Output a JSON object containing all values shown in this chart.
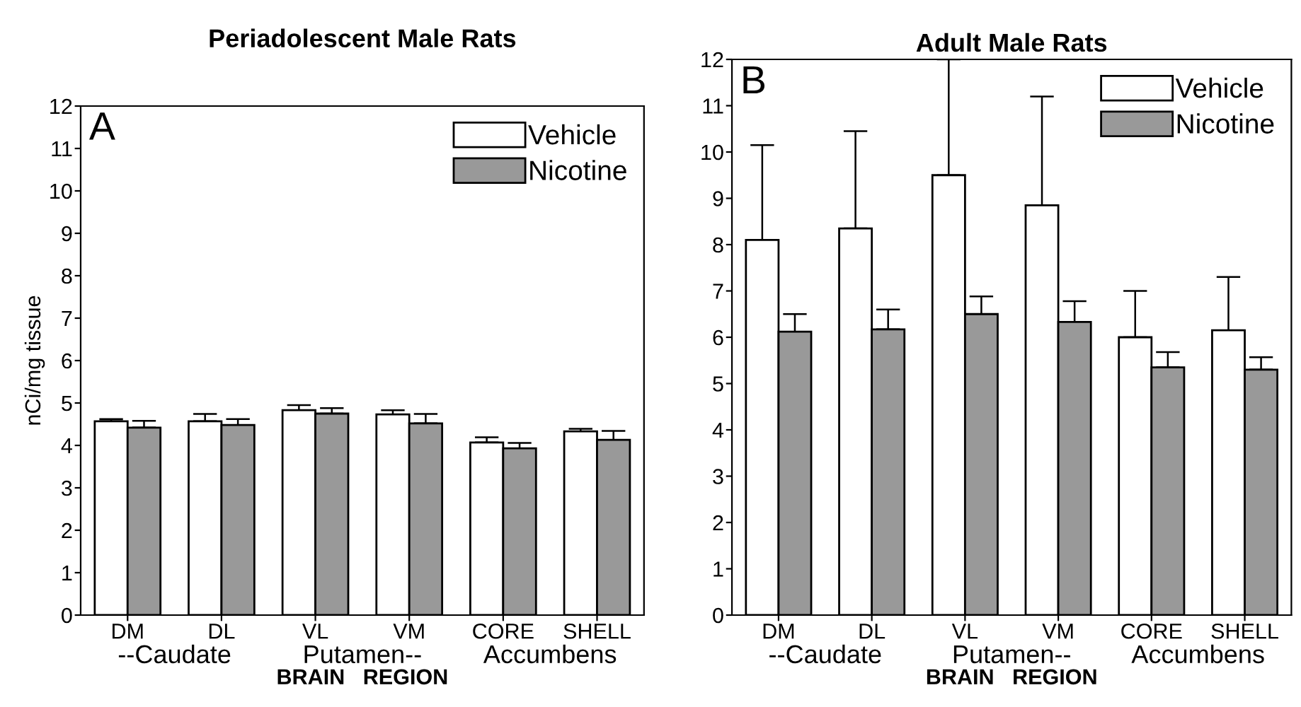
{
  "chart_data": [
    {
      "type": "bar",
      "title": "Periadolescent Male Rats",
      "ylabel": "nCi/mg tissue",
      "xlabel": "BRAIN   REGION",
      "categories": [
        "DM",
        "DL",
        "VL",
        "VM",
        "CORE",
        "SHELL"
      ],
      "annotations": [
        "A",
        "--Caudate",
        "Putamen--",
        "Accumbens"
      ],
      "series": [
        {
          "name": "Vehicle",
          "color": "#ffffff",
          "values": [
            4.57,
            4.57,
            4.83,
            4.73,
            4.07,
            4.33
          ],
          "errors": [
            [
              4.57,
              4.62
            ],
            [
              4.57,
              4.74
            ],
            [
              4.83,
              4.95
            ],
            [
              4.73,
              4.83
            ],
            [
              4.07,
              4.19
            ],
            [
              4.33,
              4.39
            ]
          ]
        },
        {
          "name": "Nicotine",
          "color": "#999999",
          "values": [
            4.42,
            4.48,
            4.75,
            4.52,
            3.93,
            4.13
          ],
          "errors": [
            [
              4.42,
              4.58
            ],
            [
              4.48,
              4.62
            ],
            [
              4.75,
              4.88
            ],
            [
              4.52,
              4.74
            ],
            [
              3.93,
              4.06
            ],
            [
              4.13,
              4.34
            ]
          ]
        }
      ],
      "ylim": [
        0,
        12
      ],
      "yticks": [
        0,
        1,
        2,
        3,
        4,
        5,
        6,
        7,
        8,
        9,
        10,
        11,
        12
      ],
      "grid": false,
      "legend": "top right"
    },
    {
      "type": "bar",
      "title": "Adult Male Rats",
      "xlabel": "BRAIN   REGION",
      "categories": [
        "DM",
        "DL",
        "VL",
        "VM",
        "CORE",
        "SHELL"
      ],
      "annotations": [
        "B",
        "--Caudate",
        "Putamen--",
        "Accumbens"
      ],
      "series": [
        {
          "name": "Vehicle",
          "color": "#ffffff",
          "values": [
            8.1,
            8.35,
            9.5,
            8.85,
            6.0,
            6.15
          ],
          "errors": [
            [
              8.1,
              10.15
            ],
            [
              8.35,
              10.45
            ],
            [
              9.5,
              12.0
            ],
            [
              8.85,
              11.2
            ],
            [
              6.0,
              7.0
            ],
            [
              6.15,
              7.3
            ]
          ]
        },
        {
          "name": "Nicotine",
          "color": "#999999",
          "values": [
            6.12,
            6.17,
            6.5,
            6.33,
            5.35,
            5.3
          ],
          "errors": [
            [
              6.12,
              6.5
            ],
            [
              6.17,
              6.6
            ],
            [
              6.5,
              6.88
            ],
            [
              6.33,
              6.78
            ],
            [
              5.35,
              5.68
            ],
            [
              5.3,
              5.57
            ]
          ]
        }
      ],
      "ylim": [
        0,
        12
      ],
      "yticks": [
        0,
        1,
        2,
        3,
        4,
        5,
        6,
        7,
        8,
        9,
        10,
        11,
        12
      ],
      "grid": false,
      "legend": "top right"
    }
  ]
}
